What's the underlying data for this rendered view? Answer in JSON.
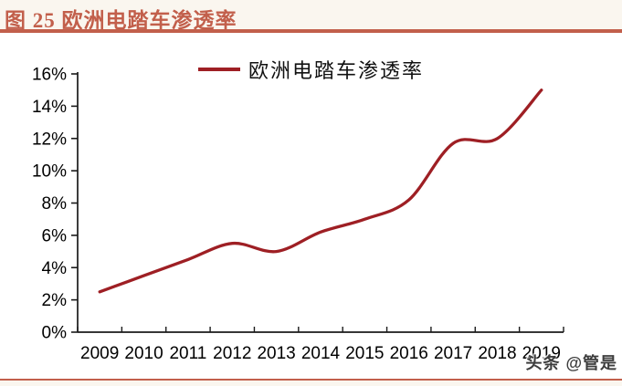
{
  "header": {
    "title": "图 25 欧洲电踏车渗透率"
  },
  "watermark": {
    "text": "头条 @管是"
  },
  "colors": {
    "accent_terracotta": "#C25F4B",
    "line_dark_red": "#9E1F24",
    "axis_black": "#1A1A1A",
    "label_black": "#000000",
    "page_bg": "#FAF6EF",
    "panel_bg": "#FFFFFF",
    "watermark_gray": "#3D3D3D"
  },
  "chart_data": {
    "type": "line",
    "title": "图 25 欧洲电踏车渗透率",
    "legend_position": "top-center",
    "categories": [
      "2009",
      "2010",
      "2011",
      "2012",
      "2013",
      "2014",
      "2015",
      "2016",
      "2017",
      "2018",
      "2019"
    ],
    "series": [
      {
        "name": "欧洲电踏车渗透率",
        "color": "#9E1F24",
        "values": [
          2.5,
          3.5,
          4.5,
          5.5,
          5.0,
          6.2,
          7.0,
          8.2,
          11.7,
          12.0,
          15.0
        ]
      }
    ],
    "xlabel": "",
    "ylabel": "",
    "ylim": [
      0,
      16
    ],
    "ytick_step": 2,
    "ytick_labels": [
      "0%",
      "2%",
      "4%",
      "6%",
      "8%",
      "10%",
      "12%",
      "14%",
      "16%"
    ],
    "grid": false,
    "line_style": "smooth",
    "axis_style": "excel-category-ticks-between"
  }
}
